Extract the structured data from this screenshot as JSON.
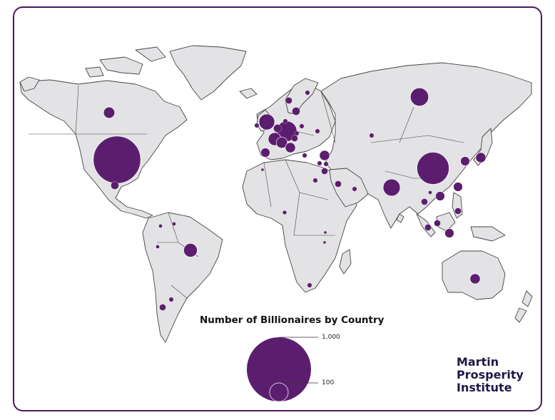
{
  "legend": {
    "title": "Number of Billionaires by Country",
    "scale_values": [
      {
        "label": "1,000",
        "value": 1000
      },
      {
        "label": "100",
        "value": 100
      }
    ]
  },
  "logo": {
    "lines": [
      "Martin",
      "Prosperity",
      "Institute"
    ]
  },
  "colors": {
    "bubble": "#5b1e6e",
    "land": "#e3e3e5",
    "border": "#444444",
    "frame": "#4a1a5c",
    "text": "#1f1747"
  },
  "map_data": {
    "type": "proportional-symbol",
    "bubbles": [
      {
        "region": "United States",
        "value": 540
      },
      {
        "region": "China",
        "value": 250
      },
      {
        "region": "India",
        "value": 70
      },
      {
        "region": "Russia",
        "value": 80
      },
      {
        "region": "Germany",
        "value": 100
      },
      {
        "region": "United Kingdom",
        "value": 60
      },
      {
        "region": "Brazil",
        "value": 45
      },
      {
        "region": "Canada",
        "value": 30
      },
      {
        "region": "Japan",
        "value": 25
      },
      {
        "region": "South Korea",
        "value": 20
      },
      {
        "region": "Australia",
        "value": 25
      },
      {
        "region": "Hong Kong",
        "value": 20
      },
      {
        "region": "Taiwan",
        "value": 20
      },
      {
        "region": "Switzerland",
        "value": 30
      },
      {
        "region": "France",
        "value": 40
      },
      {
        "region": "Turkey",
        "value": 25
      },
      {
        "region": "Italy",
        "value": 25
      },
      {
        "region": "Spain",
        "value": 20
      },
      {
        "region": "Sweden",
        "value": 15
      },
      {
        "region": "Indonesia",
        "value": 20
      },
      {
        "region": "Philippines",
        "value": 10
      },
      {
        "region": "Malaysia",
        "value": 10
      },
      {
        "region": "Thailand",
        "value": 10
      },
      {
        "region": "Singapore",
        "value": 10
      },
      {
        "region": "Mexico",
        "value": 15
      },
      {
        "region": "Israel",
        "value": 10
      },
      {
        "region": "Saudi Arabia",
        "value": 10
      },
      {
        "region": "United Arab Emirates",
        "value": 5
      },
      {
        "region": "Chile",
        "value": 10
      },
      {
        "region": "Argentina",
        "value": 5
      },
      {
        "region": "Peru",
        "value": 3
      },
      {
        "region": "Colombia",
        "value": 3
      },
      {
        "region": "Egypt",
        "value": 5
      },
      {
        "region": "Nigeria",
        "value": 4
      },
      {
        "region": "South Africa",
        "value": 5
      },
      {
        "region": "Kazakhstan",
        "value": 5
      },
      {
        "region": "Poland",
        "value": 5
      },
      {
        "region": "Netherlands",
        "value": 15
      },
      {
        "region": "Austria",
        "value": 10
      },
      {
        "region": "Czech Republic",
        "value": 5
      },
      {
        "region": "Ukraine",
        "value": 5
      },
      {
        "region": "Denmark",
        "value": 5
      },
      {
        "region": "Norway",
        "value": 10
      },
      {
        "region": "Finland",
        "value": 5
      },
      {
        "region": "Ireland",
        "value": 5
      },
      {
        "region": "Vietnam",
        "value": 3
      },
      {
        "region": "Kenya",
        "value": 2
      },
      {
        "region": "Tanzania",
        "value": 2
      },
      {
        "region": "Morocco",
        "value": 2
      },
      {
        "region": "Venezuela",
        "value": 3
      },
      {
        "region": "Greece",
        "value": 5
      },
      {
        "region": "Lebanon",
        "value": 5
      },
      {
        "region": "Cyprus",
        "value": 5
      }
    ]
  }
}
